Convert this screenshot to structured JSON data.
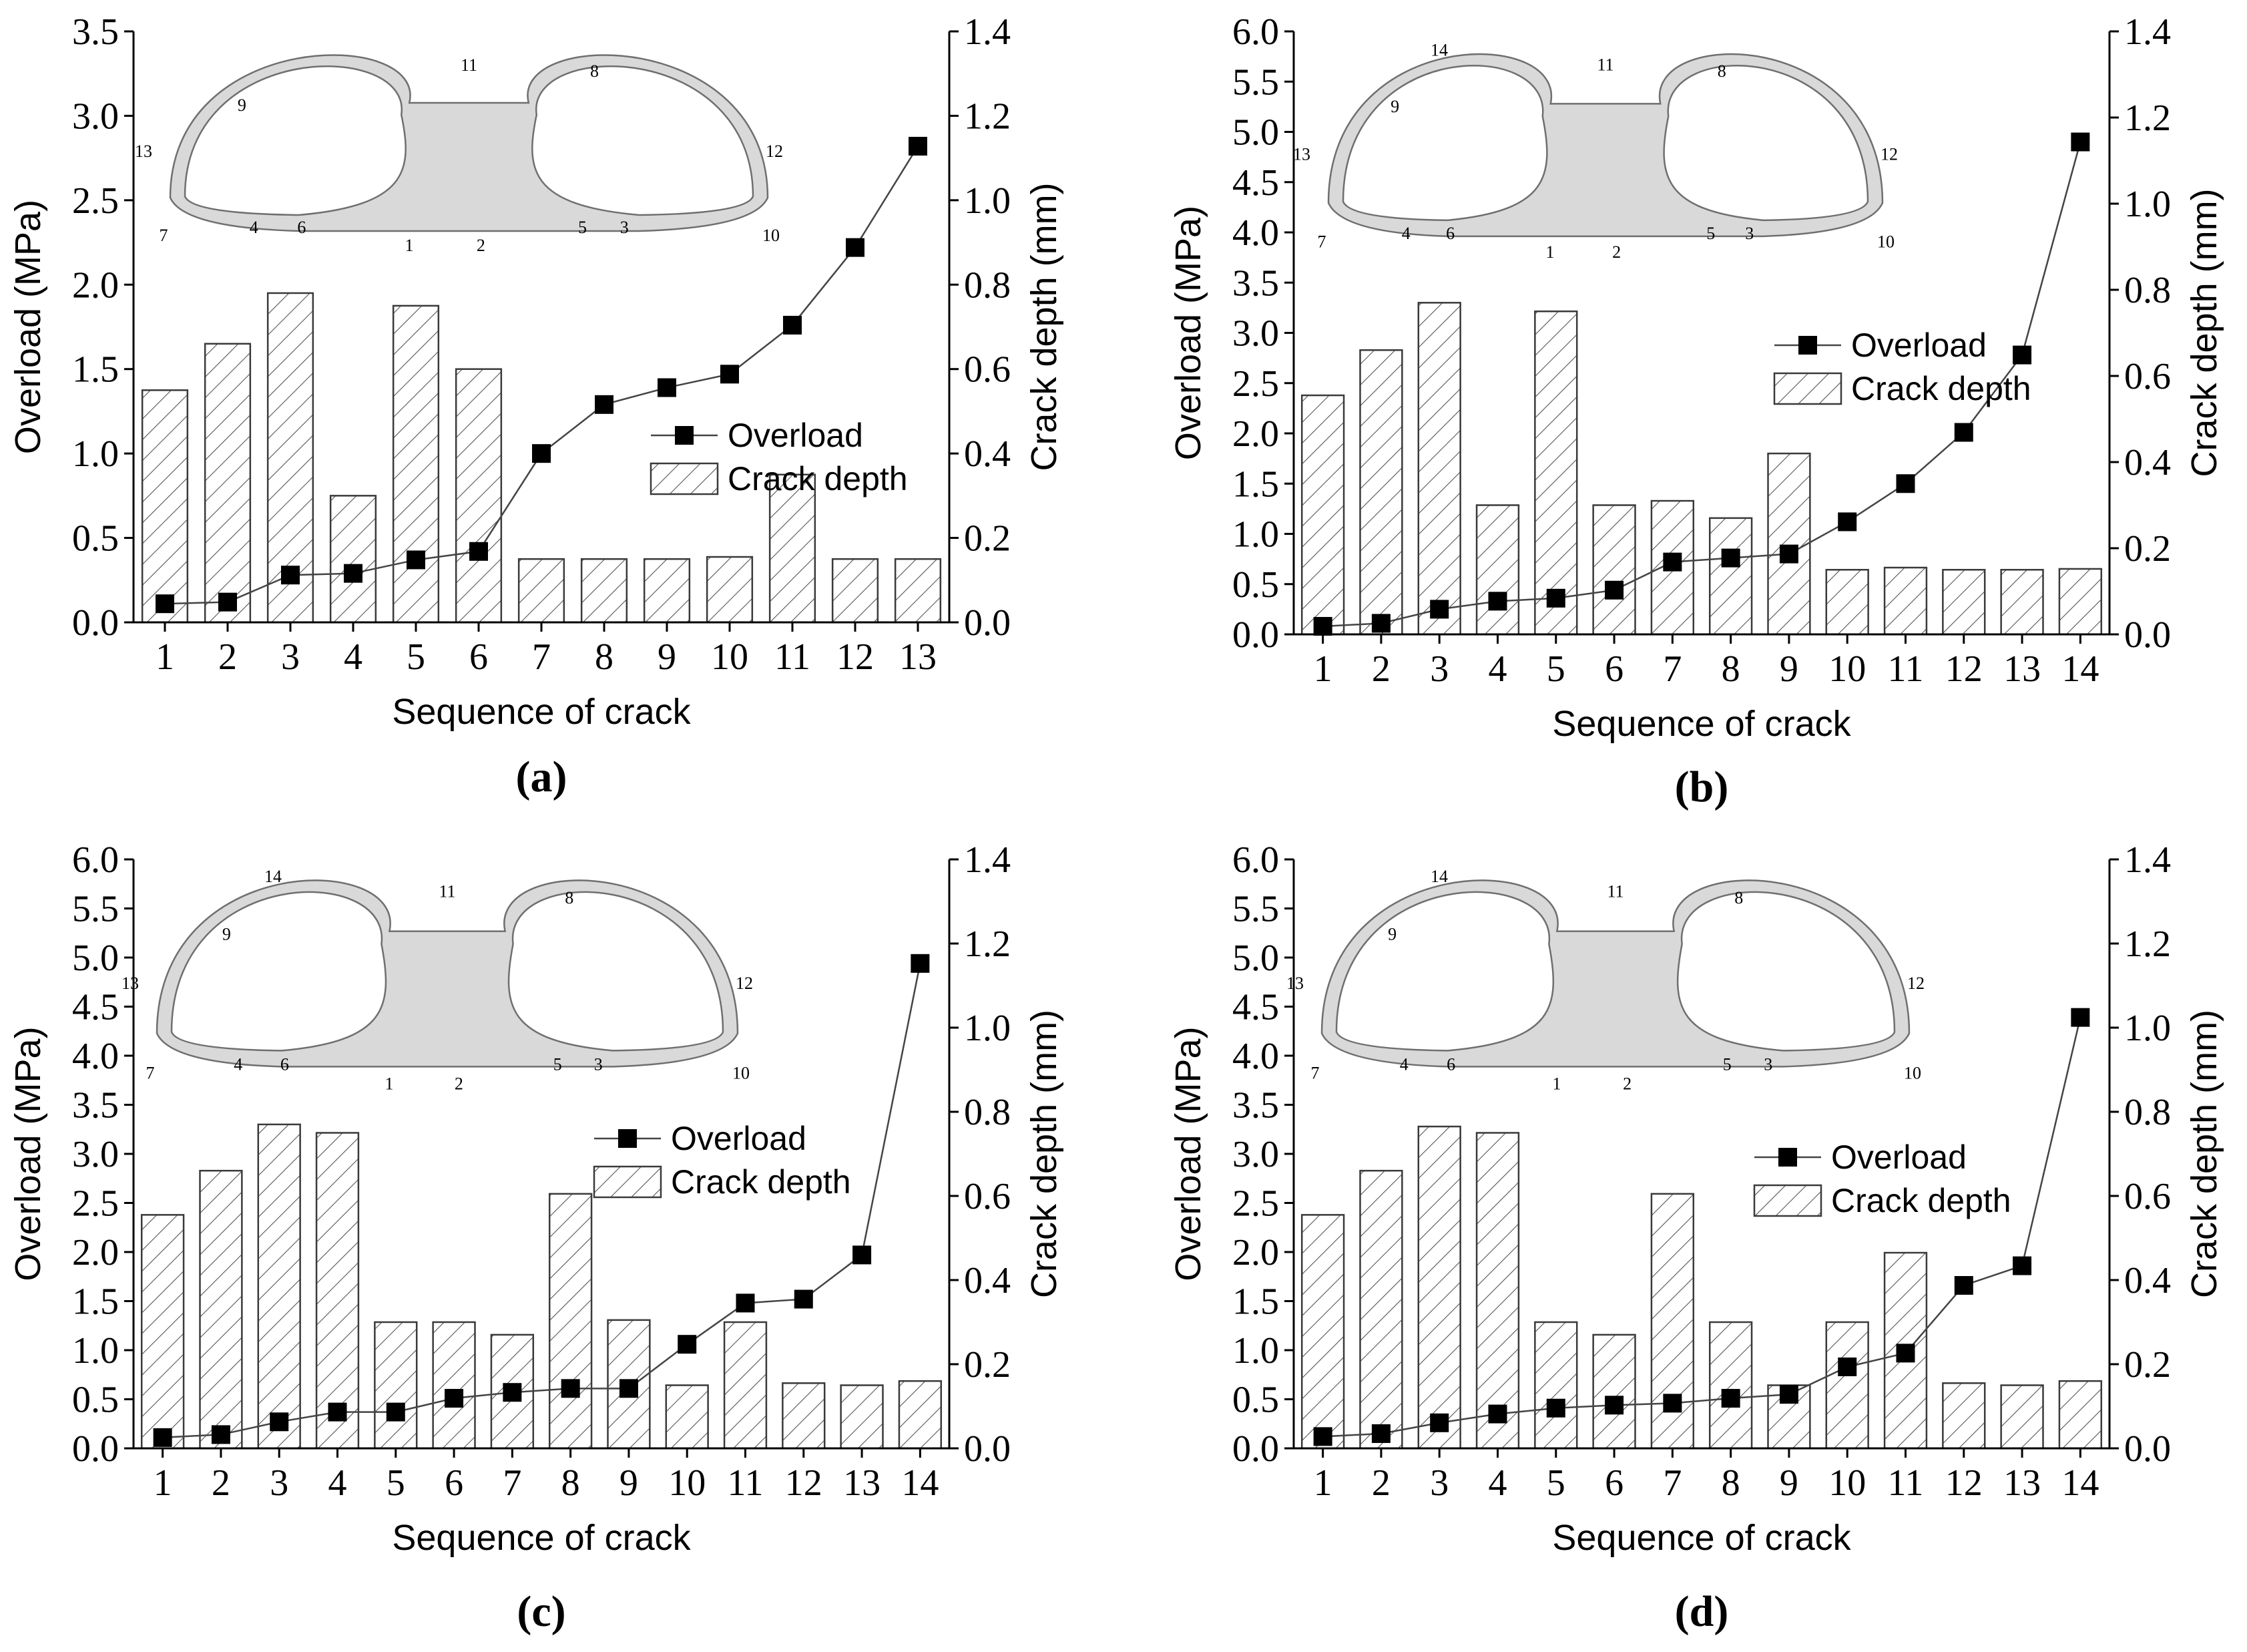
{
  "figure": {
    "x_axis_title": "Sequence of crack",
    "y_left_title": "Overload (MPa)",
    "y_right_title": "Crack depth (mm)",
    "legend_line": "Overload",
    "legend_bar": "Crack depth",
    "colors": {
      "line": "#444444",
      "marker": "#000000",
      "bar_edge": "#3a3a3a",
      "hatch": "#555555"
    }
  },
  "chart_data": [
    {
      "type": "bar+line",
      "label": "a",
      "panel_label": "(a)",
      "categories": [
        "1",
        "2",
        "3",
        "4",
        "5",
        "6",
        "7",
        "8",
        "9",
        "10",
        "11",
        "12",
        "13"
      ],
      "overload_mpa": [
        0.11,
        0.12,
        0.28,
        0.29,
        0.37,
        0.42,
        1.0,
        1.29,
        1.39,
        1.47,
        1.76,
        2.22,
        2.82
      ],
      "crack_depth_mm": [
        0.55,
        0.66,
        0.78,
        0.3,
        0.75,
        0.6,
        0.15,
        0.15,
        0.15,
        0.155,
        0.35,
        0.15,
        0.15
      ],
      "y_left": {
        "min": 0,
        "max": 3.5,
        "ticks": [
          "0.0",
          "0.5",
          "1.0",
          "1.5",
          "2.0",
          "2.5",
          "3.0",
          "3.5"
        ]
      },
      "y_right": {
        "min": 0,
        "max": 1.4,
        "ticks": [
          "0.0",
          "0.2",
          "0.4",
          "0.6",
          "0.8",
          "1.0",
          "1.2",
          "1.4"
        ]
      },
      "tunnel_labels": [
        "1",
        "2",
        "3",
        "4",
        "5",
        "6",
        "7",
        "8",
        "9",
        "10",
        "11",
        "12",
        "13"
      ]
    },
    {
      "type": "bar+line",
      "label": "b",
      "panel_label": "(b)",
      "categories": [
        "1",
        "2",
        "3",
        "4",
        "5",
        "6",
        "7",
        "8",
        "9",
        "10",
        "11",
        "12",
        "13",
        "14"
      ],
      "overload_mpa": [
        0.08,
        0.11,
        0.25,
        0.33,
        0.36,
        0.44,
        0.72,
        0.76,
        0.8,
        1.12,
        1.5,
        2.01,
        2.78,
        4.9
      ],
      "crack_depth_mm": [
        0.555,
        0.66,
        0.77,
        0.3,
        0.75,
        0.3,
        0.31,
        0.27,
        0.42,
        0.15,
        0.155,
        0.15,
        0.15,
        0.152
      ],
      "y_left": {
        "min": 0,
        "max": 6.0,
        "ticks": [
          "0.0",
          "0.5",
          "1.0",
          "1.5",
          "2.0",
          "2.5",
          "3.0",
          "3.5",
          "4.0",
          "4.5",
          "5.0",
          "5.5",
          "6.0"
        ]
      },
      "y_right": {
        "min": 0,
        "max": 1.4,
        "ticks": [
          "0.0",
          "0.2",
          "0.4",
          "0.6",
          "0.8",
          "1.0",
          "1.2",
          "1.4"
        ]
      },
      "tunnel_labels": [
        "1",
        "2",
        "3",
        "4",
        "5",
        "6",
        "7",
        "8",
        "9",
        "10",
        "11",
        "12",
        "13",
        "14"
      ]
    },
    {
      "type": "bar+line",
      "label": "c",
      "panel_label": "(c)",
      "categories": [
        "1",
        "2",
        "3",
        "4",
        "5",
        "6",
        "7",
        "8",
        "9",
        "10",
        "11",
        "12",
        "13",
        "14"
      ],
      "overload_mpa": [
        0.11,
        0.14,
        0.27,
        0.37,
        0.37,
        0.51,
        0.57,
        0.61,
        0.61,
        1.06,
        1.48,
        1.52,
        1.97,
        4.94
      ],
      "crack_depth_mm": [
        0.555,
        0.66,
        0.77,
        0.75,
        0.3,
        0.3,
        0.27,
        0.605,
        0.305,
        0.15,
        0.3,
        0.155,
        0.15,
        0.16
      ],
      "y_left": {
        "min": 0,
        "max": 6.0,
        "ticks": [
          "0.0",
          "0.5",
          "1.0",
          "1.5",
          "2.0",
          "2.5",
          "3.0",
          "3.5",
          "4.0",
          "4.5",
          "5.0",
          "5.5",
          "6.0"
        ]
      },
      "y_right": {
        "min": 0,
        "max": 1.4,
        "ticks": [
          "0.0",
          "0.2",
          "0.4",
          "0.6",
          "0.8",
          "1.0",
          "1.2",
          "1.4"
        ]
      },
      "tunnel_labels": [
        "1",
        "2",
        "3",
        "4",
        "5",
        "6",
        "7",
        "8",
        "9",
        "10",
        "11",
        "12",
        "13",
        "14"
      ]
    },
    {
      "type": "bar+line",
      "label": "d",
      "panel_label": "(d)",
      "categories": [
        "1",
        "2",
        "3",
        "4",
        "5",
        "6",
        "7",
        "8",
        "9",
        "10",
        "11",
        "12",
        "13",
        "14"
      ],
      "overload_mpa": [
        0.12,
        0.15,
        0.26,
        0.35,
        0.41,
        0.44,
        0.46,
        0.51,
        0.55,
        0.83,
        0.97,
        1.66,
        1.86,
        4.39
      ],
      "crack_depth_mm": [
        0.555,
        0.66,
        0.765,
        0.75,
        0.3,
        0.27,
        0.605,
        0.3,
        0.15,
        0.3,
        0.465,
        0.155,
        0.15,
        0.16
      ],
      "y_left": {
        "min": 0,
        "max": 6.0,
        "ticks": [
          "0.0",
          "0.5",
          "1.0",
          "1.5",
          "2.0",
          "2.5",
          "3.0",
          "3.5",
          "4.0",
          "4.5",
          "5.0",
          "5.5",
          "6.0"
        ]
      },
      "y_right": {
        "min": 0,
        "max": 1.4,
        "ticks": [
          "0.0",
          "0.2",
          "0.4",
          "0.6",
          "0.8",
          "1.0",
          "1.2",
          "1.4"
        ]
      },
      "tunnel_labels": [
        "1",
        "2",
        "3",
        "4",
        "5",
        "6",
        "7",
        "8",
        "9",
        "10",
        "11",
        "12",
        "13",
        "14"
      ]
    }
  ]
}
